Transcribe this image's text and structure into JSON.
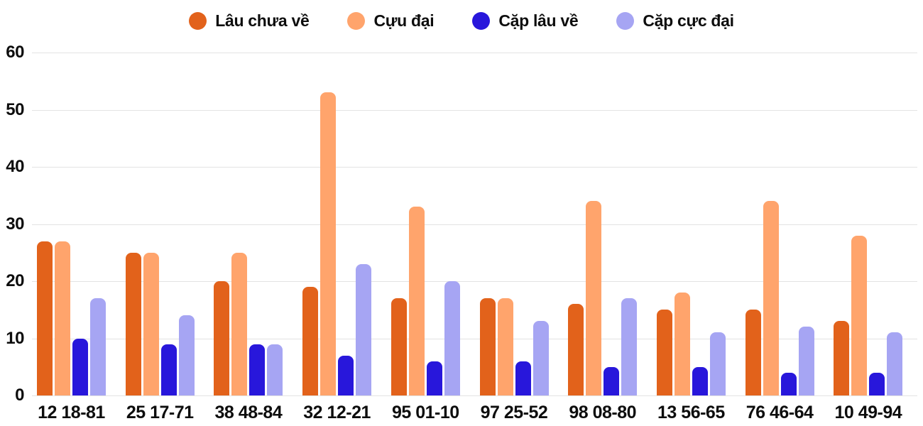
{
  "chart_data": {
    "type": "bar",
    "title": "",
    "xlabel": "",
    "ylabel": "",
    "categories": [
      "12 18-81",
      "25 17-71",
      "38 48-84",
      "32 12-21",
      "95 01-10",
      "97 25-52",
      "98 08-80",
      "13 56-65",
      "76 46-64",
      "10 49-94"
    ],
    "series": [
      {
        "name": "Lâu chưa về",
        "color": "#e2621b",
        "values": [
          27,
          25,
          20,
          19,
          17,
          17,
          16,
          15,
          15,
          13
        ]
      },
      {
        "name": "Cựu đại",
        "color": "#ffa46c",
        "values": [
          27,
          25,
          25,
          53,
          33,
          17,
          34,
          18,
          34,
          28
        ]
      },
      {
        "name": "Cặp lâu về",
        "color": "#2817db",
        "values": [
          10,
          9,
          9,
          7,
          6,
          6,
          5,
          5,
          4,
          4
        ]
      },
      {
        "name": "Cặp cực đại",
        "color": "#a6a5f3",
        "values": [
          17,
          14,
          9,
          23,
          20,
          13,
          17,
          11,
          12,
          11
        ]
      }
    ],
    "ylim": [
      0,
      60
    ],
    "yticks": [
      0,
      10,
      20,
      30,
      40,
      50,
      60
    ],
    "grid": true,
    "gridline_color": "#e3e3e3",
    "text_color": "#0d0d0d",
    "background_color": "#ffffff",
    "legend_position": "top"
  }
}
